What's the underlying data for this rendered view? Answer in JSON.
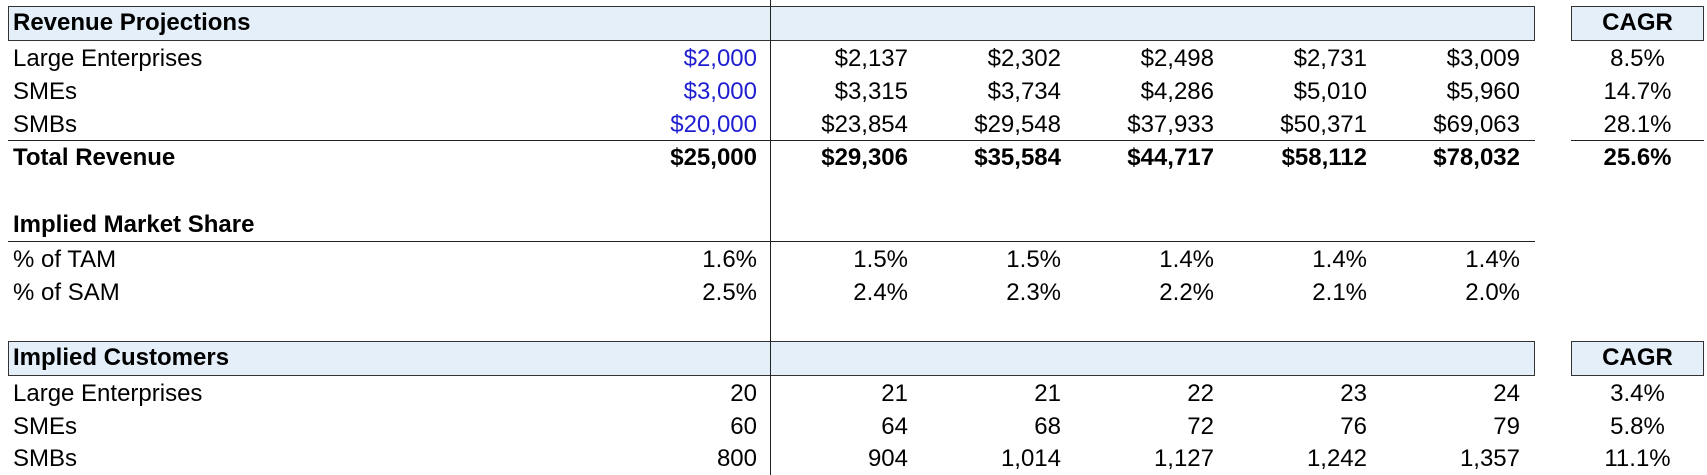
{
  "revenue": {
    "title": "Revenue Projections",
    "cagr_header": "CAGR",
    "rows": [
      {
        "label": "Large Enterprises",
        "values": [
          "$2,000",
          "$2,137",
          "$2,302",
          "$2,498",
          "$2,731",
          "$3,009"
        ],
        "cagr": "8.5%"
      },
      {
        "label": "SMEs",
        "values": [
          "$3,000",
          "$3,315",
          "$3,734",
          "$4,286",
          "$5,010",
          "$5,960"
        ],
        "cagr": "14.7%"
      },
      {
        "label": "SMBs",
        "values": [
          "$20,000",
          "$23,854",
          "$29,548",
          "$37,933",
          "$50,371",
          "$69,063"
        ],
        "cagr": "28.1%"
      }
    ],
    "total": {
      "label": "Total Revenue",
      "values": [
        "$25,000",
        "$29,306",
        "$35,584",
        "$44,717",
        "$58,112",
        "$78,032"
      ],
      "cagr": "25.6%"
    }
  },
  "market_share": {
    "title": "Implied Market Share",
    "rows": [
      {
        "label": "% of TAM",
        "values": [
          "1.6%",
          "1.5%",
          "1.5%",
          "1.4%",
          "1.4%",
          "1.4%"
        ]
      },
      {
        "label": "% of SAM",
        "values": [
          "2.5%",
          "2.4%",
          "2.3%",
          "2.2%",
          "2.1%",
          "2.0%"
        ]
      }
    ]
  },
  "customers": {
    "title": "Implied Customers",
    "cagr_header": "CAGR",
    "rows": [
      {
        "label": "Large Enterprises",
        "values": [
          "20",
          "21",
          "21",
          "22",
          "23",
          "24"
        ],
        "cagr": "3.4%"
      },
      {
        "label": "SMEs",
        "values": [
          "60",
          "64",
          "68",
          "72",
          "76",
          "79"
        ],
        "cagr": "5.8%"
      },
      {
        "label": "SMBs",
        "values": [
          "800",
          "904",
          "1,014",
          "1,127",
          "1,242",
          "1,357"
        ],
        "cagr": "11.1%"
      }
    ]
  },
  "colors": {
    "header_fill": "#e4eff9",
    "input_blue": "#1f1fd0"
  }
}
